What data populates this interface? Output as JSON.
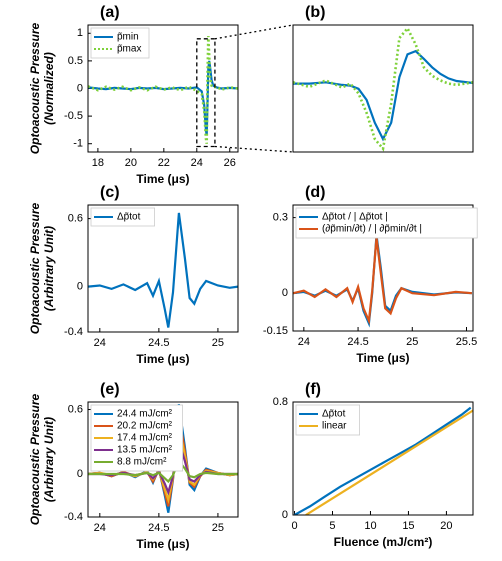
{
  "chart_data": [
    {
      "type": "line",
      "panel": "(a)",
      "xlabel": "Time (μs)",
      "ylabel": [
        "Optoacoustic Pressure",
        "(Normalized)"
      ],
      "xlim": [
        17.4,
        26.5
      ],
      "ylim": [
        -1.15,
        1.15
      ],
      "xticks": [
        18,
        20,
        22,
        24,
        26
      ],
      "yticks": [
        1,
        0.5,
        0,
        -0.5,
        -1
      ],
      "legend": "upper left",
      "zoom_box": true,
      "series": [
        {
          "name": "p̃min",
          "color": "#0072bd",
          "dash": "solid",
          "x": [
            17.4,
            18,
            18.5,
            19,
            19.5,
            20,
            20.5,
            21,
            21.5,
            22,
            22.5,
            23,
            23.5,
            24,
            24.3,
            24.45,
            24.55,
            24.6,
            24.65,
            24.7,
            24.75,
            24.8,
            24.9,
            25,
            25.2,
            25.5,
            26,
            26.5
          ],
          "values": [
            0.02,
            0,
            -0.01,
            0.01,
            0,
            -0.01,
            0.01,
            0,
            0.01,
            -0.01,
            0,
            0.01,
            0,
            0.02,
            -0.05,
            -0.3,
            -0.75,
            -0.85,
            -0.3,
            0.35,
            0.5,
            0.4,
            0.15,
            0.05,
            0.02,
            0,
            0.01,
            0
          ]
        },
        {
          "name": "p̃max",
          "color": "#7fd13b",
          "dash": "dotted",
          "x": [
            17.4,
            18,
            18.5,
            19,
            19.5,
            20,
            20.5,
            21,
            21.5,
            22,
            22.5,
            23,
            23.5,
            24,
            24.3,
            24.45,
            24.55,
            24.6,
            24.65,
            24.7,
            24.75,
            24.8,
            24.9,
            25,
            25.2,
            25.5,
            26,
            26.5
          ],
          "values": [
            0.04,
            -0.03,
            0.03,
            -0.02,
            0.03,
            -0.03,
            0.02,
            -0.03,
            0.03,
            -0.02,
            0.02,
            -0.03,
            0.03,
            -0.04,
            -0.1,
            -0.4,
            -0.9,
            -1.0,
            0.2,
            0.95,
            0.6,
            0.2,
            0.05,
            0.02,
            0.03,
            -0.02,
            0.02,
            0
          ]
        }
      ]
    },
    {
      "type": "line",
      "panel": "(b)",
      "xlim": [
        24.0,
        25.1
      ],
      "ylim": [
        -1.05,
        0.9
      ],
      "series": [
        {
          "color": "#0072bd",
          "dash": "solid",
          "x": [
            24.0,
            24.1,
            24.2,
            24.3,
            24.35,
            24.4,
            24.45,
            24.5,
            24.55,
            24.6,
            24.65,
            24.7,
            24.75,
            24.8,
            24.85,
            24.9,
            24.95,
            25.0,
            25.1
          ],
          "values": [
            0,
            0,
            0.02,
            -0.02,
            -0.03,
            -0.08,
            -0.25,
            -0.6,
            -0.85,
            -0.6,
            0.1,
            0.45,
            0.5,
            0.38,
            0.25,
            0.15,
            0.08,
            0.04,
            0.01
          ]
        },
        {
          "color": "#7fd13b",
          "dash": "dotted",
          "x": [
            24.0,
            24.1,
            24.2,
            24.3,
            24.35,
            24.4,
            24.45,
            24.5,
            24.55,
            24.6,
            24.65,
            24.7,
            24.75,
            24.8,
            24.85,
            24.9,
            24.95,
            25.0,
            25.1
          ],
          "values": [
            0.02,
            -0.05,
            0.05,
            -0.06,
            0,
            -0.15,
            -0.45,
            -0.85,
            -1.0,
            -0.3,
            0.7,
            0.85,
            0.6,
            0.25,
            0.12,
            0.05,
            0,
            -0.02,
            0.02
          ]
        }
      ]
    },
    {
      "type": "line",
      "panel": "(c)",
      "xlabel": "Time (μs)",
      "ylabel": [
        "Optoacoustic Pressure",
        "(Arbitrary Unit)"
      ],
      "xlim": [
        23.9,
        25.17
      ],
      "ylim": [
        -0.4,
        0.72
      ],
      "xticks": [
        24,
        24.5,
        25
      ],
      "yticks": [
        0.6,
        0,
        -0.4
      ],
      "legend": "upper left",
      "series": [
        {
          "name": "Δp̃tot",
          "color": "#0072bd",
          "dash": "solid",
          "x": [
            23.9,
            24.0,
            24.1,
            24.2,
            24.3,
            24.4,
            24.45,
            24.5,
            24.55,
            24.58,
            24.62,
            24.67,
            24.72,
            24.76,
            24.8,
            24.85,
            24.9,
            25.0,
            25.1,
            25.17
          ],
          "values": [
            0,
            0.01,
            -0.02,
            0.02,
            -0.03,
            0.03,
            -0.08,
            0.05,
            -0.2,
            -0.36,
            -0.05,
            0.65,
            0.25,
            -0.1,
            -0.15,
            -0.02,
            0.05,
            0.01,
            -0.01,
            0
          ]
        }
      ]
    },
    {
      "type": "line",
      "panel": "(d)",
      "xlabel": "Time (μs)",
      "xlim": [
        23.9,
        25.56
      ],
      "ylim": [
        -0.15,
        0.35
      ],
      "xticks": [
        24,
        24.5,
        25,
        25.5
      ],
      "yticks": [
        0.3,
        0,
        -0.15
      ],
      "legend": "upper left",
      "series": [
        {
          "name": "Δp̃tot / | Δp̃tot |",
          "color": "#0072bd",
          "dash": "solid",
          "x": [
            23.9,
            24.0,
            24.1,
            24.2,
            24.3,
            24.4,
            24.45,
            24.5,
            24.55,
            24.6,
            24.63,
            24.67,
            24.71,
            24.75,
            24.8,
            24.85,
            24.9,
            25.0,
            25.2,
            25.4,
            25.55
          ],
          "values": [
            0,
            0.005,
            -0.01,
            0.01,
            -0.01,
            0.015,
            -0.03,
            0.02,
            -0.07,
            -0.12,
            0,
            0.23,
            0.1,
            -0.05,
            -0.07,
            -0.01,
            0.02,
            0.005,
            -0.005,
            0.003,
            0
          ]
        },
        {
          "name": "(∂p̃min/∂t) / | ∂p̃min/∂t |",
          "color": "#d95319",
          "dash": "solid",
          "x": [
            23.9,
            24.0,
            24.1,
            24.2,
            24.3,
            24.4,
            24.45,
            24.5,
            24.55,
            24.6,
            24.63,
            24.67,
            24.71,
            24.75,
            24.8,
            24.85,
            24.9,
            25.0,
            25.2,
            25.4,
            25.55
          ],
          "values": [
            0,
            0.01,
            -0.015,
            0.015,
            -0.015,
            0.02,
            -0.035,
            0.025,
            -0.06,
            -0.11,
            0.01,
            0.22,
            0.08,
            -0.06,
            -0.08,
            -0.02,
            0.02,
            0,
            -0.008,
            0.005,
            0
          ]
        }
      ]
    },
    {
      "type": "line",
      "panel": "(e)",
      "xlabel": "Time (μs)",
      "ylabel": [
        "Optoacoustic Pressure",
        "(Arbitrary Unit)"
      ],
      "xlim": [
        23.9,
        25.17
      ],
      "ylim": [
        -0.4,
        0.67
      ],
      "xticks": [
        24,
        24.5,
        25
      ],
      "yticks": [
        0.6,
        0,
        -0.4
      ],
      "legend": "upper left",
      "series": [
        {
          "name": "24.4 mJ/cm²",
          "color": "#0072bd",
          "dash": "solid",
          "x": [
            23.9,
            24.0,
            24.1,
            24.2,
            24.3,
            24.4,
            24.45,
            24.5,
            24.55,
            24.58,
            24.62,
            24.67,
            24.72,
            24.76,
            24.8,
            24.85,
            24.9,
            25.0,
            25.1,
            25.17
          ],
          "values": [
            0,
            0.01,
            -0.02,
            0.02,
            -0.03,
            0.03,
            -0.08,
            0.05,
            -0.2,
            -0.36,
            -0.05,
            0.65,
            0.25,
            -0.1,
            -0.15,
            -0.02,
            0.05,
            0.01,
            -0.01,
            0
          ]
        },
        {
          "name": "20.2 mJ/cm²",
          "color": "#d95319",
          "dash": "solid",
          "x": [
            23.9,
            24.0,
            24.1,
            24.2,
            24.3,
            24.4,
            24.45,
            24.5,
            24.55,
            24.58,
            24.62,
            24.67,
            24.72,
            24.76,
            24.8,
            24.85,
            24.9,
            25.0,
            25.1,
            25.17
          ],
          "values": [
            0,
            0.01,
            -0.02,
            0.02,
            -0.02,
            0.02,
            -0.07,
            0.04,
            -0.17,
            -0.3,
            -0.04,
            0.54,
            0.21,
            -0.08,
            -0.12,
            -0.02,
            0.04,
            0.01,
            -0.01,
            0
          ]
        },
        {
          "name": "17.4 mJ/cm²",
          "color": "#edb120",
          "dash": "solid",
          "x": [
            23.9,
            24.0,
            24.1,
            24.2,
            24.3,
            24.4,
            24.45,
            24.5,
            24.55,
            24.58,
            24.62,
            24.67,
            24.72,
            24.76,
            24.8,
            24.85,
            24.9,
            25.0,
            25.1,
            25.17
          ],
          "values": [
            0,
            0.01,
            -0.01,
            0.01,
            -0.02,
            0.02,
            -0.05,
            0.03,
            -0.14,
            -0.24,
            -0.03,
            0.44,
            0.17,
            -0.07,
            -0.1,
            -0.01,
            0.03,
            0.01,
            -0.01,
            0
          ]
        },
        {
          "name": "13.5 mJ/cm²",
          "color": "#7e2f8e",
          "dash": "solid",
          "x": [
            23.9,
            24.0,
            24.1,
            24.2,
            24.3,
            24.4,
            24.45,
            24.5,
            24.55,
            24.58,
            24.62,
            24.67,
            24.72,
            24.76,
            24.8,
            24.85,
            24.9,
            25.0,
            25.1,
            25.17
          ],
          "values": [
            0,
            0,
            -0.01,
            0.01,
            -0.01,
            0.01,
            -0.04,
            0.02,
            -0.09,
            -0.17,
            -0.02,
            0.3,
            0.12,
            -0.05,
            -0.07,
            -0.01,
            0.02,
            0,
            0,
            0
          ]
        },
        {
          "name": "8.8 mJ/cm²",
          "color": "#77ac30",
          "dash": "solid",
          "x": [
            23.9,
            24.0,
            24.1,
            24.2,
            24.3,
            24.4,
            24.45,
            24.5,
            24.55,
            24.58,
            24.62,
            24.67,
            24.72,
            24.76,
            24.8,
            24.85,
            24.9,
            25.0,
            25.1,
            25.17
          ],
          "values": [
            0,
            0,
            0,
            0,
            -0.01,
            0.01,
            -0.01,
            0.01,
            -0.04,
            -0.07,
            -0.01,
            0.12,
            0.05,
            -0.02,
            -0.03,
            0,
            0.01,
            0,
            0,
            0
          ]
        }
      ]
    },
    {
      "type": "line",
      "panel": "(f)",
      "xlabel": "Fluence (mJ/cm²)",
      "xlim": [
        -0.2,
        23.5
      ],
      "ylim": [
        0,
        0.8
      ],
      "xticks": [
        0,
        5,
        10,
        15,
        20
      ],
      "yticks": [
        0.8,
        0
      ],
      "legend": "upper left",
      "series": [
        {
          "name": "Δp̃tot",
          "color": "#0072bd",
          "dash": "solid",
          "x": [
            0,
            2,
            4,
            6,
            8,
            10,
            12,
            14,
            16,
            18,
            20,
            22,
            23.2
          ],
          "values": [
            0,
            0.06,
            0.13,
            0.2,
            0.26,
            0.32,
            0.38,
            0.44,
            0.5,
            0.57,
            0.64,
            0.71,
            0.76
          ]
        },
        {
          "name": "linear",
          "color": "#edb120",
          "dash": "solid",
          "x": [
            1.5,
            23.5
          ],
          "values": [
            0,
            0.74
          ]
        }
      ]
    }
  ]
}
